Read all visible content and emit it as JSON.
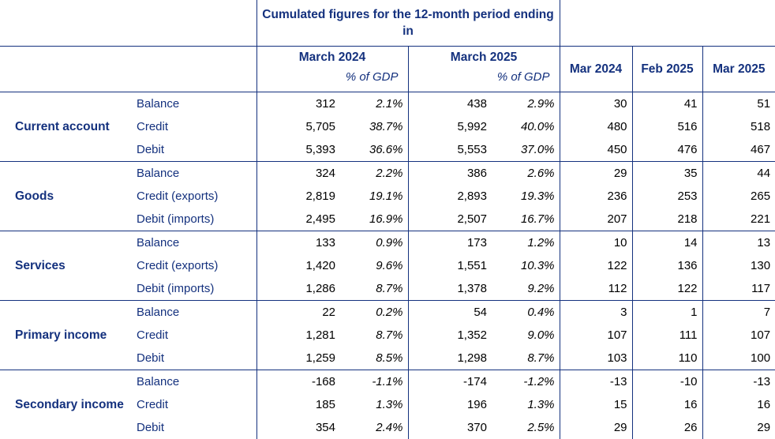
{
  "header": {
    "cumulated_title": "Cumulated figures for the 12-month period ending in",
    "period_1": "March 2024",
    "period_2": "March 2025",
    "gdp_label": "% of GDP",
    "months": [
      "Mar 2024",
      "Feb 2025",
      "Mar 2025"
    ]
  },
  "groups": [
    {
      "name": "Current account",
      "rows": [
        {
          "label": "Balance",
          "v1": "312",
          "p1": "2.1%",
          "v2": "438",
          "p2": "2.9%",
          "m1": "30",
          "m2": "41",
          "m3": "51"
        },
        {
          "label": "Credit",
          "v1": "5,705",
          "p1": "38.7%",
          "v2": "5,992",
          "p2": "40.0%",
          "m1": "480",
          "m2": "516",
          "m3": "518"
        },
        {
          "label": "Debit",
          "v1": "5,393",
          "p1": "36.6%",
          "v2": "5,553",
          "p2": "37.0%",
          "m1": "450",
          "m2": "476",
          "m3": "467"
        }
      ]
    },
    {
      "name": "Goods",
      "rows": [
        {
          "label": "Balance",
          "v1": "324",
          "p1": "2.2%",
          "v2": "386",
          "p2": "2.6%",
          "m1": "29",
          "m2": "35",
          "m3": "44"
        },
        {
          "label": "Credit (exports)",
          "v1": "2,819",
          "p1": "19.1%",
          "v2": "2,893",
          "p2": "19.3%",
          "m1": "236",
          "m2": "253",
          "m3": "265"
        },
        {
          "label": "Debit (imports)",
          "v1": "2,495",
          "p1": "16.9%",
          "v2": "2,507",
          "p2": "16.7%",
          "m1": "207",
          "m2": "218",
          "m3": "221"
        }
      ]
    },
    {
      "name": "Services",
      "rows": [
        {
          "label": "Balance",
          "v1": "133",
          "p1": "0.9%",
          "v2": "173",
          "p2": "1.2%",
          "m1": "10",
          "m2": "14",
          "m3": "13"
        },
        {
          "label": "Credit (exports)",
          "v1": "1,420",
          "p1": "9.6%",
          "v2": "1,551",
          "p2": "10.3%",
          "m1": "122",
          "m2": "136",
          "m3": "130"
        },
        {
          "label": "Debit (imports)",
          "v1": "1,286",
          "p1": "8.7%",
          "v2": "1,378",
          "p2": "9.2%",
          "m1": "112",
          "m2": "122",
          "m3": "117"
        }
      ]
    },
    {
      "name": "Primary income",
      "rows": [
        {
          "label": "Balance",
          "v1": "22",
          "p1": "0.2%",
          "v2": "54",
          "p2": "0.4%",
          "m1": "3",
          "m2": "1",
          "m3": "7"
        },
        {
          "label": "Credit",
          "v1": "1,281",
          "p1": "8.7%",
          "v2": "1,352",
          "p2": "9.0%",
          "m1": "107",
          "m2": "111",
          "m3": "107"
        },
        {
          "label": "Debit",
          "v1": "1,259",
          "p1": "8.5%",
          "v2": "1,298",
          "p2": "8.7%",
          "m1": "103",
          "m2": "110",
          "m3": "100"
        }
      ]
    },
    {
      "name": "Secondary income",
      "rows": [
        {
          "label": "Balance",
          "v1": "-168",
          "p1": "-1.1%",
          "v2": "-174",
          "p2": "-1.2%",
          "m1": "-13",
          "m2": "-10",
          "m3": "-13"
        },
        {
          "label": "Credit",
          "v1": "185",
          "p1": "1.3%",
          "v2": "196",
          "p2": "1.3%",
          "m1": "15",
          "m2": "16",
          "m3": "16"
        },
        {
          "label": "Debit",
          "v1": "354",
          "p1": "2.4%",
          "v2": "370",
          "p2": "2.5%",
          "m1": "29",
          "m2": "26",
          "m3": "29"
        }
      ]
    }
  ]
}
